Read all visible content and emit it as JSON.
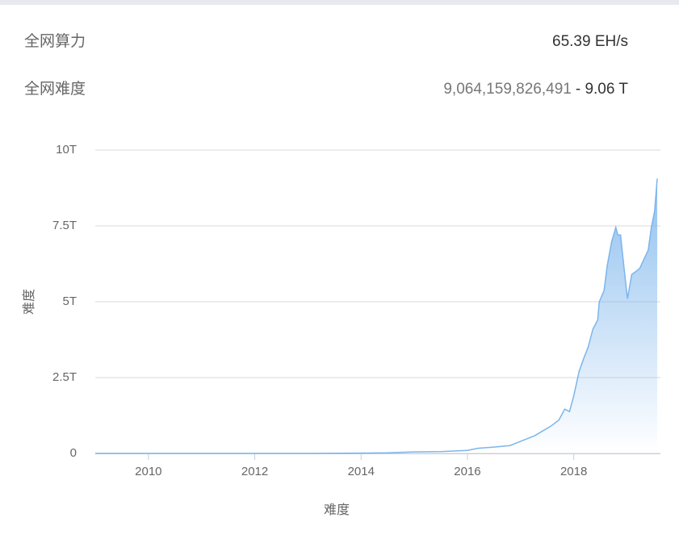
{
  "header": {
    "rows": [
      {
        "label": "全网算力",
        "value": "65.39 EH/s"
      },
      {
        "label": "全网难度",
        "value": "9,064,159,826,491",
        "value_suffix": "- 9.06 T"
      }
    ]
  },
  "chart_data": {
    "type": "area",
    "y_label": "难度",
    "x_label": "难度",
    "color": "#7cb5ec",
    "grid": true,
    "x": [
      2009.0,
      2010.0,
      2011.0,
      2012.0,
      2013.0,
      2014.0,
      2014.5,
      2015.0,
      2015.5,
      2016.0,
      2016.2,
      2016.5,
      2016.8,
      2016.96,
      2017.26,
      2017.57,
      2017.72,
      2017.83,
      2017.92,
      2018.0,
      2018.1,
      2018.18,
      2018.27,
      2018.36,
      2018.45,
      2018.48,
      2018.57,
      2018.63,
      2018.71,
      2018.79,
      2018.83,
      2018.88,
      2018.94,
      2019.01,
      2019.09,
      2019.17,
      2019.24,
      2019.32,
      2019.4,
      2019.46,
      2019.52,
      2019.57
    ],
    "values": [
      0,
      0,
      0,
      0,
      0,
      0.01,
      0.02,
      0.05,
      0.06,
      0.1,
      0.17,
      0.21,
      0.26,
      0.37,
      0.58,
      0.9,
      1.1,
      1.46,
      1.38,
      1.9,
      2.7,
      3.1,
      3.5,
      4.1,
      4.4,
      5.0,
      5.37,
      6.2,
      6.96,
      7.45,
      7.2,
      7.2,
      6.2,
      5.1,
      5.9,
      6.0,
      6.1,
      6.4,
      6.7,
      7.46,
      7.98,
      9.06
    ],
    "xlim": [
      2009,
      2019.63
    ],
    "xticks": [
      2010,
      2012,
      2014,
      2016,
      2018
    ],
    "ylim": [
      0,
      10
    ],
    "yticks": [
      0,
      {
        "value": 2.5,
        "label": "2.5T"
      },
      {
        "value": 5,
        "label": "5T"
      },
      {
        "value": 7.5,
        "label": "7.5T"
      },
      {
        "value": 10,
        "label": "10T"
      }
    ]
  }
}
